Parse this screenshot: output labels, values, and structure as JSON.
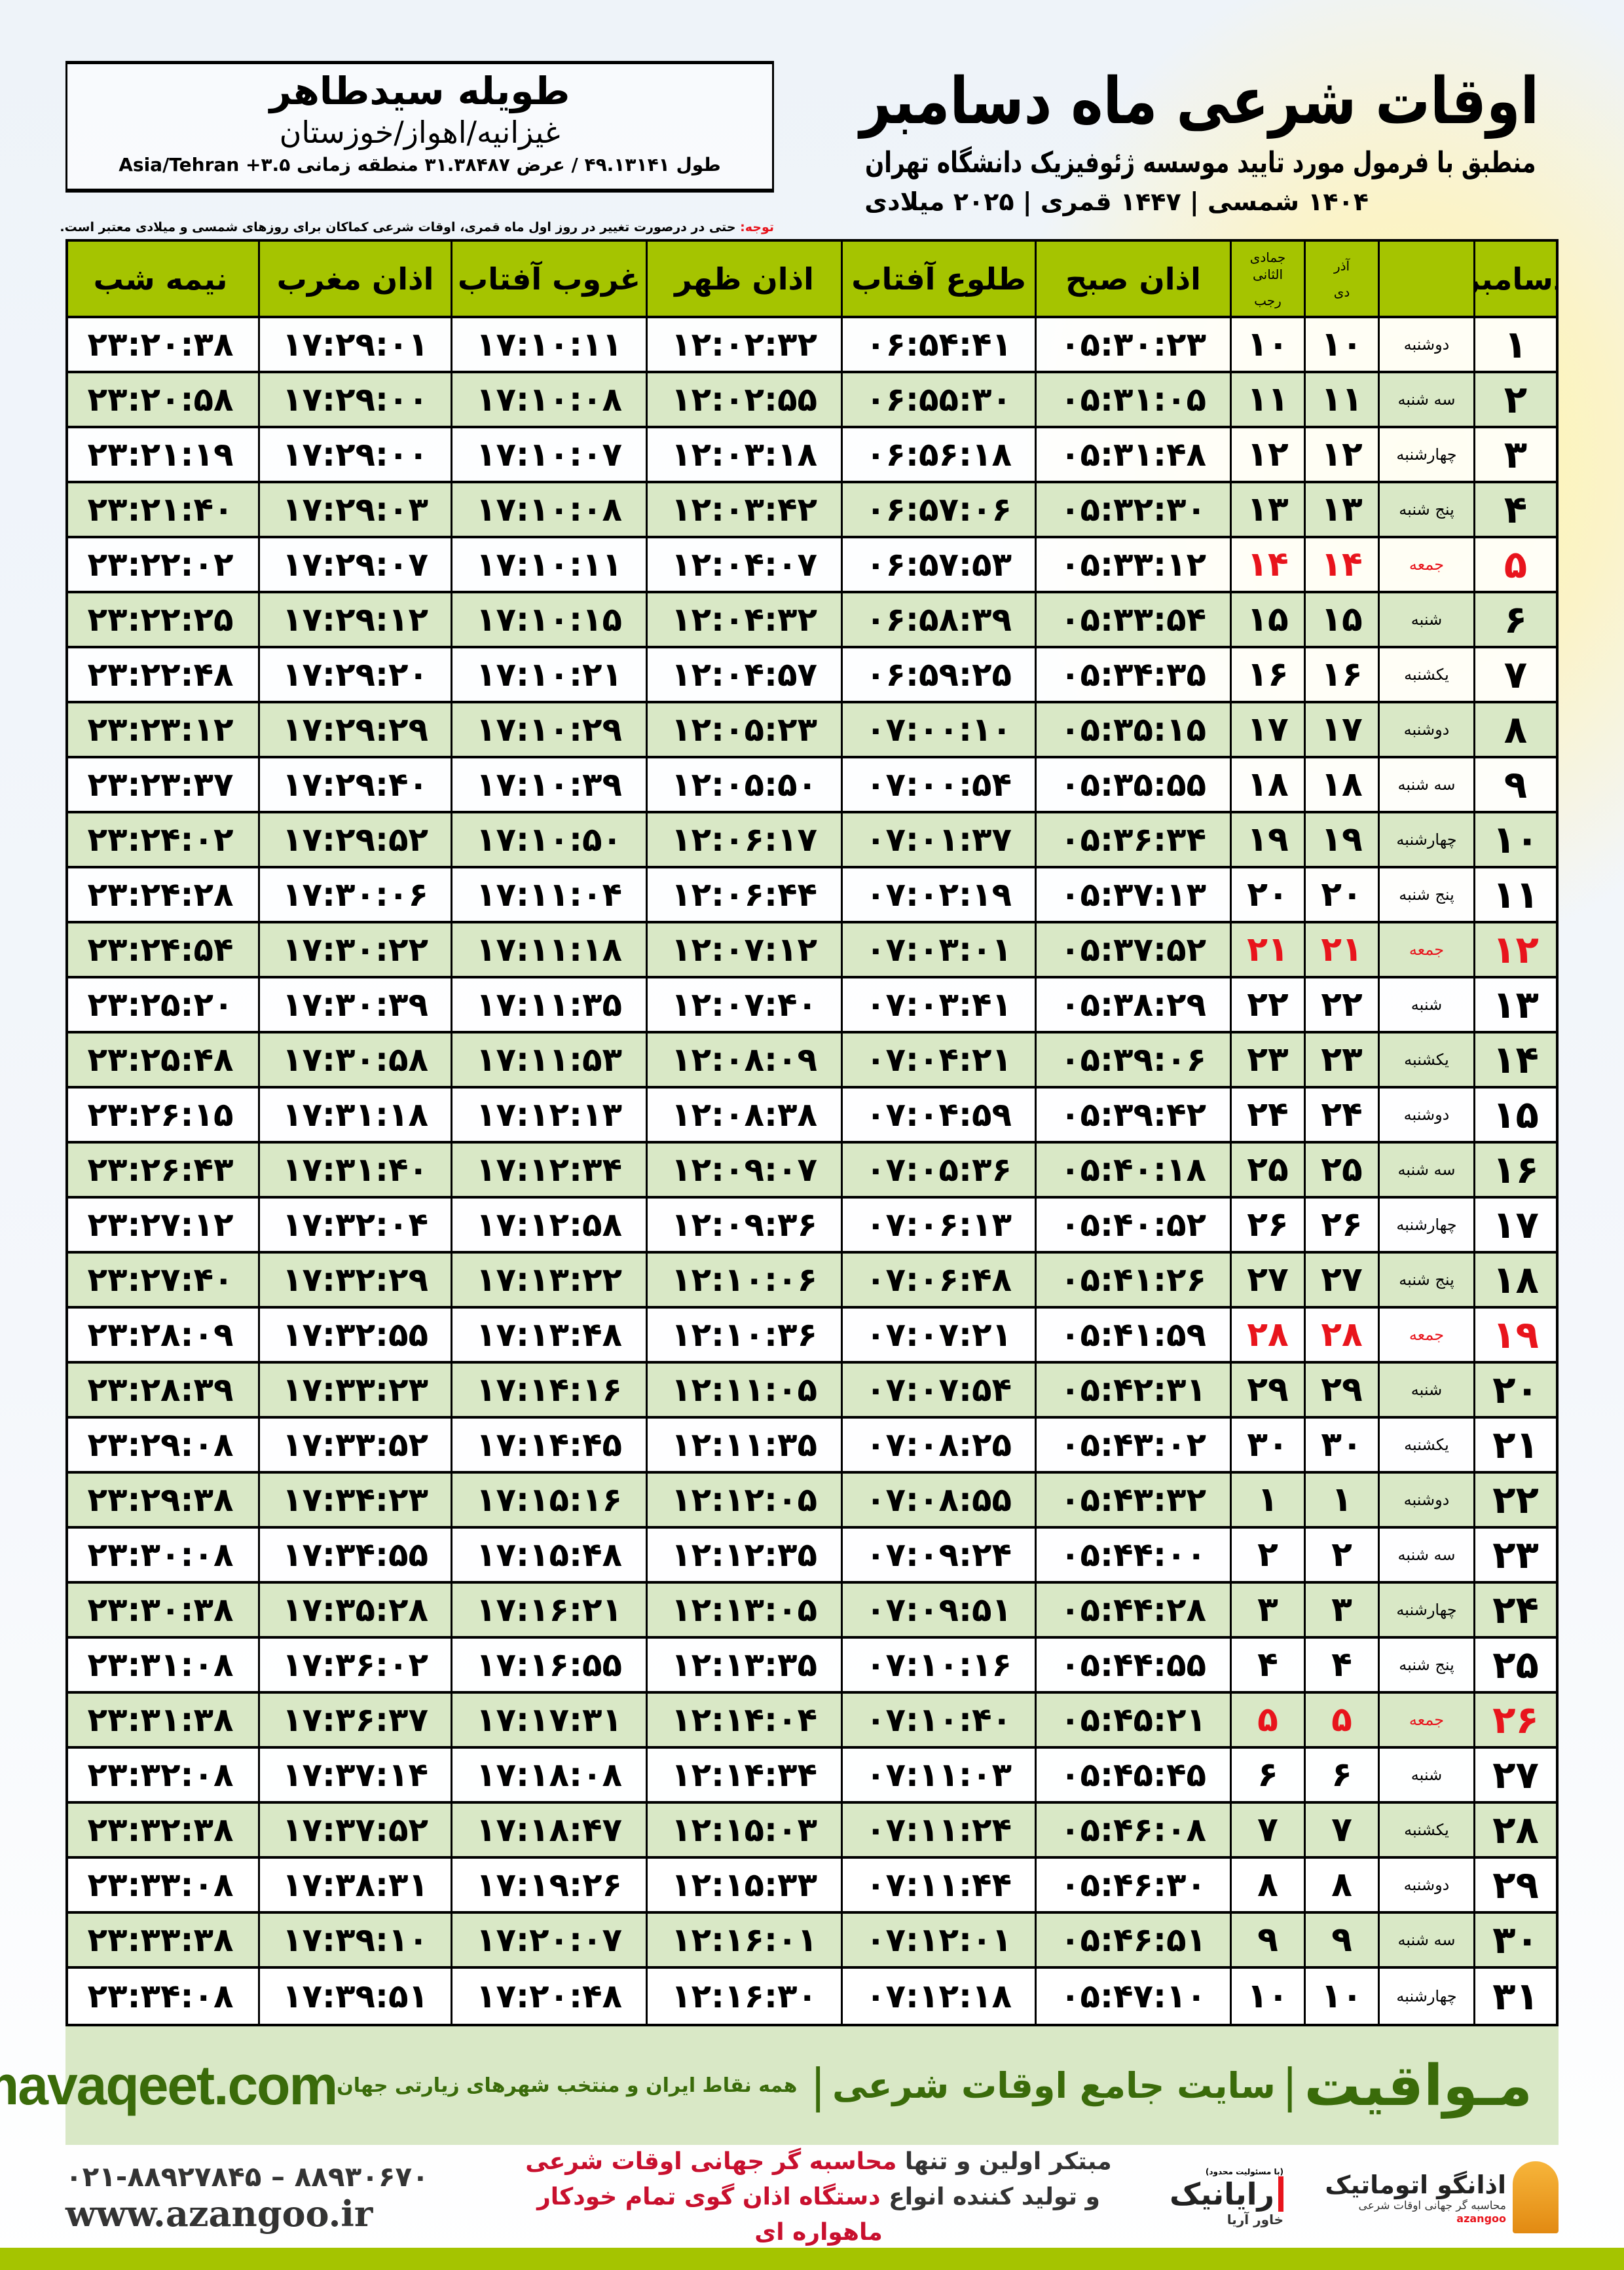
{
  "location": {
    "name": "طویله سیدطاهر",
    "path": "غیزانیه/اهواز/خوزستان",
    "coords": "طول ۴۹.۱۳۱۴۱ / عرض ۳۱.۳۸۴۸۷ منطقه زمانی ۳.۵+ Asia/Tehran"
  },
  "header": {
    "title": "اوقات شرعی ماه دسامبر",
    "subtitle": "منطبق با فرمول مورد تایید موسسه ژئوفیزیک دانشگاه تهران",
    "dates": "۱۴۰۴ شمسی | ۱۴۴۷ قمری | ۲۰۲۵ میلادی"
  },
  "note": {
    "label": "توجه:",
    "text": " حتی در درصورت تغییر در روز اول ماه قمری، اوقات شرعی کماکان برای روزهای شمسی و میلادی معتبر است."
  },
  "colors": {
    "header_bg": "#a5c400",
    "row_alt": "#d9e8c6",
    "holiday": "#e8141c",
    "brand_green": "#3a6b0a"
  },
  "table": {
    "holiday_weekday": "جمعه",
    "columns": {
      "month": "دسامبر",
      "shamsi_top": "آذر",
      "shamsi_bottom": "دی",
      "qamari_top": "جمادی الثانی",
      "qamari_bottom": "رجب",
      "fajr": "اذان صبح",
      "sunrise": "طلوع آفتاب",
      "dhuhr": "اذان ظهر",
      "sunset": "غروب آفتاب",
      "maghrib": "اذان مغرب",
      "midnight": "نیمه شب"
    },
    "rows": [
      [
        "۱",
        "دوشنبه",
        "۱۰",
        "۱۰",
        "۰۵:۳۰:۲۳",
        "۰۶:۵۴:۴۱",
        "۱۲:۰۲:۳۲",
        "۱۷:۱۰:۱۱",
        "۱۷:۲۹:۰۱",
        "۲۳:۲۰:۳۸"
      ],
      [
        "۲",
        "سه شنبه",
        "۱۱",
        "۱۱",
        "۰۵:۳۱:۰۵",
        "۰۶:۵۵:۳۰",
        "۱۲:۰۲:۵۵",
        "۱۷:۱۰:۰۸",
        "۱۷:۲۹:۰۰",
        "۲۳:۲۰:۵۸"
      ],
      [
        "۳",
        "چهارشنبه",
        "۱۲",
        "۱۲",
        "۰۵:۳۱:۴۸",
        "۰۶:۵۶:۱۸",
        "۱۲:۰۳:۱۸",
        "۱۷:۱۰:۰۷",
        "۱۷:۲۹:۰۰",
        "۲۳:۲۱:۱۹"
      ],
      [
        "۴",
        "پنج شنبه",
        "۱۳",
        "۱۳",
        "۰۵:۳۲:۳۰",
        "۰۶:۵۷:۰۶",
        "۱۲:۰۳:۴۲",
        "۱۷:۱۰:۰۸",
        "۱۷:۲۹:۰۳",
        "۲۳:۲۱:۴۰"
      ],
      [
        "۵",
        "جمعه",
        "۱۴",
        "۱۴",
        "۰۵:۳۳:۱۲",
        "۰۶:۵۷:۵۳",
        "۱۲:۰۴:۰۷",
        "۱۷:۱۰:۱۱",
        "۱۷:۲۹:۰۷",
        "۲۳:۲۲:۰۲"
      ],
      [
        "۶",
        "شنبه",
        "۱۵",
        "۱۵",
        "۰۵:۳۳:۵۴",
        "۰۶:۵۸:۳۹",
        "۱۲:۰۴:۳۲",
        "۱۷:۱۰:۱۵",
        "۱۷:۲۹:۱۲",
        "۲۳:۲۲:۲۵"
      ],
      [
        "۷",
        "یکشنبه",
        "۱۶",
        "۱۶",
        "۰۵:۳۴:۳۵",
        "۰۶:۵۹:۲۵",
        "۱۲:۰۴:۵۷",
        "۱۷:۱۰:۲۱",
        "۱۷:۲۹:۲۰",
        "۲۳:۲۲:۴۸"
      ],
      [
        "۸",
        "دوشنبه",
        "۱۷",
        "۱۷",
        "۰۵:۳۵:۱۵",
        "۰۷:۰۰:۱۰",
        "۱۲:۰۵:۲۳",
        "۱۷:۱۰:۲۹",
        "۱۷:۲۹:۲۹",
        "۲۳:۲۳:۱۲"
      ],
      [
        "۹",
        "سه شنبه",
        "۱۸",
        "۱۸",
        "۰۵:۳۵:۵۵",
        "۰۷:۰۰:۵۴",
        "۱۲:۰۵:۵۰",
        "۱۷:۱۰:۳۹",
        "۱۷:۲۹:۴۰",
        "۲۳:۲۳:۳۷"
      ],
      [
        "۱۰",
        "چهارشنبه",
        "۱۹",
        "۱۹",
        "۰۵:۳۶:۳۴",
        "۰۷:۰۱:۳۷",
        "۱۲:۰۶:۱۷",
        "۱۷:۱۰:۵۰",
        "۱۷:۲۹:۵۲",
        "۲۳:۲۴:۰۲"
      ],
      [
        "۱۱",
        "پنج شنبه",
        "۲۰",
        "۲۰",
        "۰۵:۳۷:۱۳",
        "۰۷:۰۲:۱۹",
        "۱۲:۰۶:۴۴",
        "۱۷:۱۱:۰۴",
        "۱۷:۳۰:۰۶",
        "۲۳:۲۴:۲۸"
      ],
      [
        "۱۲",
        "جمعه",
        "۲۱",
        "۲۱",
        "۰۵:۳۷:۵۲",
        "۰۷:۰۳:۰۱",
        "۱۲:۰۷:۱۲",
        "۱۷:۱۱:۱۸",
        "۱۷:۳۰:۲۲",
        "۲۳:۲۴:۵۴"
      ],
      [
        "۱۳",
        "شنبه",
        "۲۲",
        "۲۲",
        "۰۵:۳۸:۲۹",
        "۰۷:۰۳:۴۱",
        "۱۲:۰۷:۴۰",
        "۱۷:۱۱:۳۵",
        "۱۷:۳۰:۳۹",
        "۲۳:۲۵:۲۰"
      ],
      [
        "۱۴",
        "یکشنبه",
        "۲۳",
        "۲۳",
        "۰۵:۳۹:۰۶",
        "۰۷:۰۴:۲۱",
        "۱۲:۰۸:۰۹",
        "۱۷:۱۱:۵۳",
        "۱۷:۳۰:۵۸",
        "۲۳:۲۵:۴۸"
      ],
      [
        "۱۵",
        "دوشنبه",
        "۲۴",
        "۲۴",
        "۰۵:۳۹:۴۲",
        "۰۷:۰۴:۵۹",
        "۱۲:۰۸:۳۸",
        "۱۷:۱۲:۱۳",
        "۱۷:۳۱:۱۸",
        "۲۳:۲۶:۱۵"
      ],
      [
        "۱۶",
        "سه شنبه",
        "۲۵",
        "۲۵",
        "۰۵:۴۰:۱۸",
        "۰۷:۰۵:۳۶",
        "۱۲:۰۹:۰۷",
        "۱۷:۱۲:۳۴",
        "۱۷:۳۱:۴۰",
        "۲۳:۲۶:۴۳"
      ],
      [
        "۱۷",
        "چهارشنبه",
        "۲۶",
        "۲۶",
        "۰۵:۴۰:۵۲",
        "۰۷:۰۶:۱۳",
        "۱۲:۰۹:۳۶",
        "۱۷:۱۲:۵۸",
        "۱۷:۳۲:۰۴",
        "۲۳:۲۷:۱۲"
      ],
      [
        "۱۸",
        "پنج شنبه",
        "۲۷",
        "۲۷",
        "۰۵:۴۱:۲۶",
        "۰۷:۰۶:۴۸",
        "۱۲:۱۰:۰۶",
        "۱۷:۱۳:۲۲",
        "۱۷:۳۲:۲۹",
        "۲۳:۲۷:۴۰"
      ],
      [
        "۱۹",
        "جمعه",
        "۲۸",
        "۲۸",
        "۰۵:۴۱:۵۹",
        "۰۷:۰۷:۲۱",
        "۱۲:۱۰:۳۶",
        "۱۷:۱۳:۴۸",
        "۱۷:۳۲:۵۵",
        "۲۳:۲۸:۰۹"
      ],
      [
        "۲۰",
        "شنبه",
        "۲۹",
        "۲۹",
        "۰۵:۴۲:۳۱",
        "۰۷:۰۷:۵۴",
        "۱۲:۱۱:۰۵",
        "۱۷:۱۴:۱۶",
        "۱۷:۳۳:۲۳",
        "۲۳:۲۸:۳۹"
      ],
      [
        "۲۱",
        "یکشنبه",
        "۳۰",
        "۳۰",
        "۰۵:۴۳:۰۲",
        "۰۷:۰۸:۲۵",
        "۱۲:۱۱:۳۵",
        "۱۷:۱۴:۴۵",
        "۱۷:۳۳:۵۲",
        "۲۳:۲۹:۰۸"
      ],
      [
        "۲۲",
        "دوشنبه",
        "۱",
        "۱",
        "۰۵:۴۳:۳۲",
        "۰۷:۰۸:۵۵",
        "۱۲:۱۲:۰۵",
        "۱۷:۱۵:۱۶",
        "۱۷:۳۴:۲۳",
        "۲۳:۲۹:۳۸"
      ],
      [
        "۲۳",
        "سه شنبه",
        "۲",
        "۲",
        "۰۵:۴۴:۰۰",
        "۰۷:۰۹:۲۴",
        "۱۲:۱۲:۳۵",
        "۱۷:۱۵:۴۸",
        "۱۷:۳۴:۵۵",
        "۲۳:۳۰:۰۸"
      ],
      [
        "۲۴",
        "چهارشنبه",
        "۳",
        "۳",
        "۰۵:۴۴:۲۸",
        "۰۷:۰۹:۵۱",
        "۱۲:۱۳:۰۵",
        "۱۷:۱۶:۲۱",
        "۱۷:۳۵:۲۸",
        "۲۳:۳۰:۳۸"
      ],
      [
        "۲۵",
        "پنج شنبه",
        "۴",
        "۴",
        "۰۵:۴۴:۵۵",
        "۰۷:۱۰:۱۶",
        "۱۲:۱۳:۳۵",
        "۱۷:۱۶:۵۵",
        "۱۷:۳۶:۰۲",
        "۲۳:۳۱:۰۸"
      ],
      [
        "۲۶",
        "جمعه",
        "۵",
        "۵",
        "۰۵:۴۵:۲۱",
        "۰۷:۱۰:۴۰",
        "۱۲:۱۴:۰۴",
        "۱۷:۱۷:۳۱",
        "۱۷:۳۶:۳۷",
        "۲۳:۳۱:۳۸"
      ],
      [
        "۲۷",
        "شنبه",
        "۶",
        "۶",
        "۰۵:۴۵:۴۵",
        "۰۷:۱۱:۰۳",
        "۱۲:۱۴:۳۴",
        "۱۷:۱۸:۰۸",
        "۱۷:۳۷:۱۴",
        "۲۳:۳۲:۰۸"
      ],
      [
        "۲۸",
        "یکشنبه",
        "۷",
        "۷",
        "۰۵:۴۶:۰۸",
        "۰۷:۱۱:۲۴",
        "۱۲:۱۵:۰۳",
        "۱۷:۱۸:۴۷",
        "۱۷:۳۷:۵۲",
        "۲۳:۳۲:۳۸"
      ],
      [
        "۲۹",
        "دوشنبه",
        "۸",
        "۸",
        "۰۵:۴۶:۳۰",
        "۰۷:۱۱:۴۴",
        "۱۲:۱۵:۳۳",
        "۱۷:۱۹:۲۶",
        "۱۷:۳۸:۳۱",
        "۲۳:۳۳:۰۸"
      ],
      [
        "۳۰",
        "سه شنبه",
        "۹",
        "۹",
        "۰۵:۴۶:۵۱",
        "۰۷:۱۲:۰۱",
        "۱۲:۱۶:۰۱",
        "۱۷:۲۰:۰۷",
        "۱۷:۳۹:۱۰",
        "۲۳:۳۳:۳۸"
      ],
      [
        "۳۱",
        "چهارشنبه",
        "۱۰",
        "۱۰",
        "۰۵:۴۷:۱۰",
        "۰۷:۱۲:۱۸",
        "۱۲:۱۶:۳۰",
        "۱۷:۲۰:۴۸",
        "۱۷:۳۹:۵۱",
        "۲۳:۳۴:۰۸"
      ]
    ]
  },
  "banner": {
    "logo": "مـواقیت",
    "separator": "|",
    "tagline": "سایت جامع اوقات شرعی",
    "sub": "همه نقاط ایران و منتخب شهرهای زیارتی جهان",
    "url": "mavaqeet.com"
  },
  "footer": {
    "azangoo_name": "اذانگو اتوماتیک",
    "azangoo_sub": "محاسبه گر جهانی اوقات شرعی",
    "azangoo_latin": "azangoo",
    "rayanik_name": "رایانیک",
    "rayanik_sub": "خاور آریا",
    "rayanik_note": "(با مسئولیت محدود)",
    "promo_1a": "مبتکر اولین و تنها ",
    "promo_1b": "محاسبه گر جهانی اوقات شرعی",
    "promo_2a": "و تولید کننده انواع ",
    "promo_2b": "دستگاه اذان گوی تمام خودکار ماهواره ای",
    "phone": "۰۲۱-۸۸۹۲۷۸۴۵ – ۸۸۹۳۰۶۷۰",
    "website": "www.azangoo.ir"
  }
}
